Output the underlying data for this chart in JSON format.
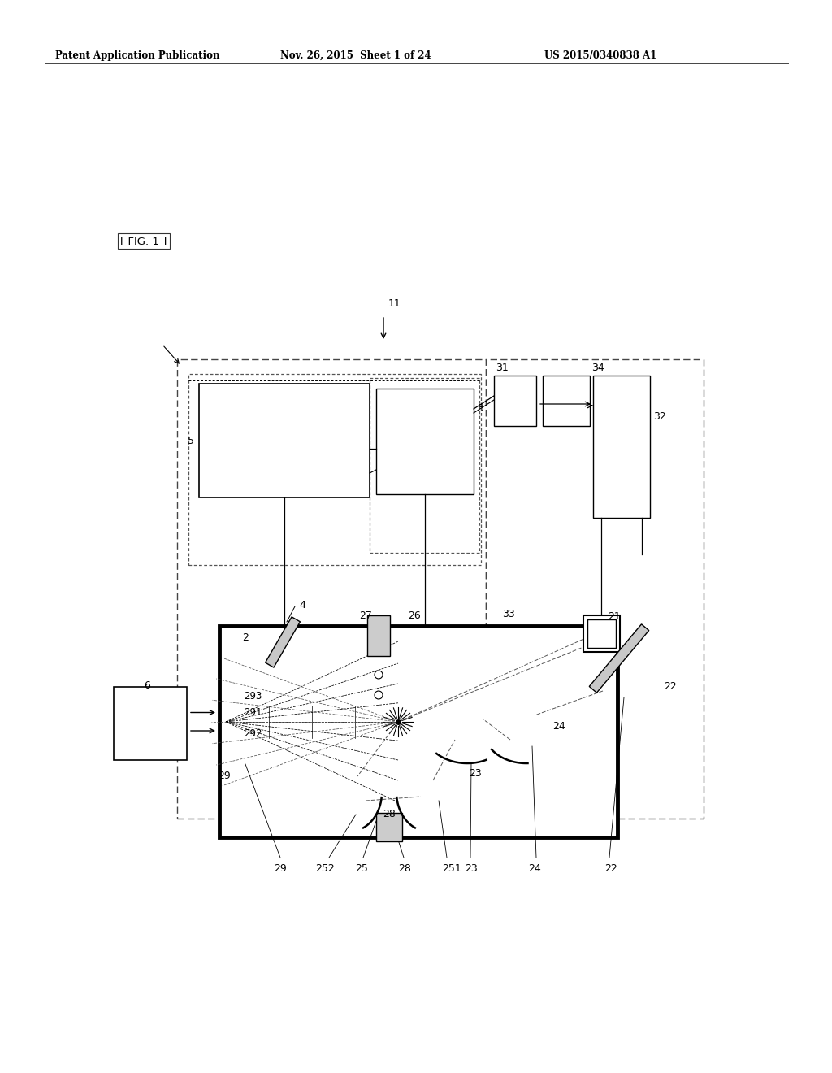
{
  "bg_color": "#ffffff",
  "header_text": "Patent Application Publication",
  "header_date": "Nov. 26, 2015  Sheet 1 of 24",
  "header_number": "US 2015/0340838 A1",
  "fig_label": "[ FIG. 1 ]",
  "labels": {
    "11": "11",
    "5": "5",
    "3": "3",
    "31": "31",
    "34": "34",
    "32": "32",
    "4": "4",
    "2": "2",
    "26": "26",
    "27": "27",
    "33": "33",
    "21": "21",
    "6": "6",
    "293": "293",
    "291": "291",
    "292": "292",
    "29": "29",
    "252": "252",
    "25": "25",
    "28": "28",
    "251": "251",
    "23": "23",
    "24": "24",
    "22": "22"
  }
}
